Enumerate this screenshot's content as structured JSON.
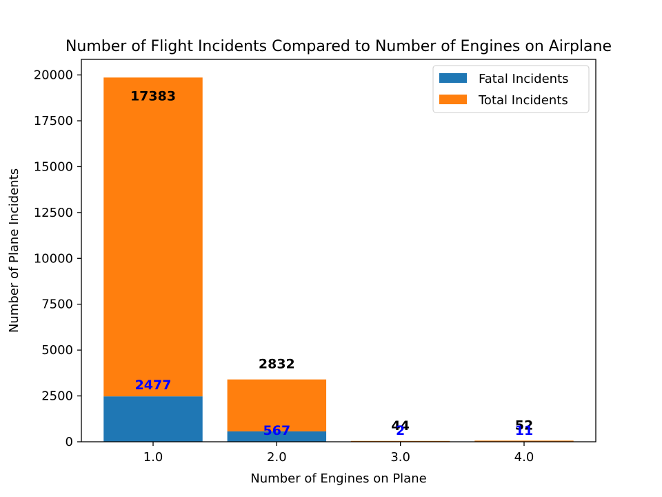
{
  "chart_data": {
    "type": "bar",
    "stacked": true,
    "title": "Number of Flight Incidents Compared to Number of Engines on Airplane",
    "xlabel": "Number of Engines on Plane",
    "ylabel": "Number of Plane Incidents",
    "categories": [
      "1.0",
      "2.0",
      "3.0",
      "4.0"
    ],
    "ylim": [
      0,
      20850
    ],
    "yticks": [
      0,
      2500,
      5000,
      7500,
      10000,
      12500,
      15000,
      17500,
      20000
    ],
    "series": [
      {
        "name": "Fatal Incidents",
        "color": "#1f77b4",
        "values": [
          2477,
          567,
          2,
          11
        ]
      },
      {
        "name": "Total Incidents",
        "color": "#ff7f0e",
        "values": [
          17383,
          2832,
          44,
          52
        ]
      }
    ],
    "data_labels": {
      "total": [
        "17383",
        "2832",
        "44",
        "52"
      ],
      "fatal": [
        "2477",
        "567",
        "2",
        "11"
      ]
    },
    "legend_position": "top-right",
    "grid": false
  }
}
